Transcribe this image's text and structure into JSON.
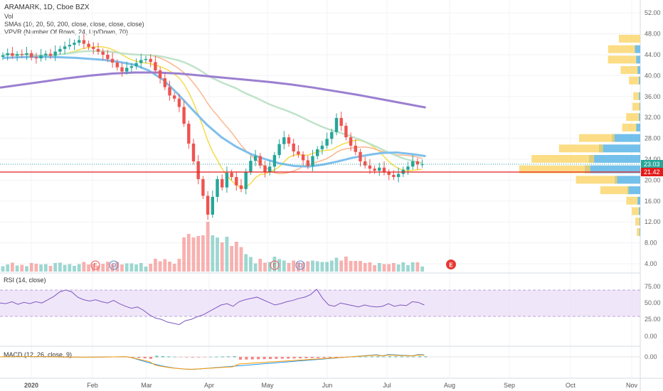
{
  "header": {
    "symbol_line": "ARAMARK, 1D, Cboe BZX",
    "indicators": [
      "Vol",
      "SMAs (10, 20, 50, 200, close, close, close, close)",
      "VPVR (Number Of Rows, 24, Up/Down, 70)"
    ]
  },
  "rsi": {
    "label": "RSI (14, close)",
    "ticks": [
      "75.00",
      "50.00",
      "25.00",
      "0.00"
    ]
  },
  "macd": {
    "label": "MACD (12, 26, close, 9)",
    "ticks": [
      "0.00"
    ]
  },
  "price_axis": {
    "ticks": [
      "52.00",
      "48.00",
      "44.00",
      "40.00",
      "36.00",
      "32.00",
      "28.00",
      "24.00",
      "20.00",
      "16.00",
      "12.00",
      "8.00",
      "4.00"
    ]
  },
  "time_axis": {
    "labels": [
      "2020",
      "Feb",
      "Mar",
      "Apr",
      "May",
      "Jun",
      "Jul",
      "Aug",
      "Sep",
      "Oct",
      "Nov"
    ]
  },
  "badges": {
    "last_price": "23.03",
    "level_price": "21.42",
    "earnings_marker": "E",
    "dividend_marker": "D"
  },
  "colors": {
    "up": "#26a69a",
    "down": "#ef5350",
    "sma10": "#f5dc4b",
    "sma20": "#fbb68f",
    "sma50": "#bfe3c9",
    "sma200": "#9b7fd0",
    "sma_long": "#7fbfec",
    "vpvr_up": "#5ab5e8",
    "vpvr_down": "#fbd15c",
    "level_line": "#e31b1b",
    "rsi_band": "#e9dcf7"
  },
  "chart_data": {
    "type": "candlestick",
    "x_labels": [
      "2020",
      "Feb",
      "Mar",
      "Apr",
      "May",
      "Jun",
      "Jul",
      "Aug",
      "Sep",
      "Oct",
      "Nov"
    ],
    "ylim": [
      2,
      54
    ],
    "candles": [
      {
        "o": 43.6,
        "c": 43.9
      },
      {
        "o": 43.9,
        "c": 44.3
      },
      {
        "o": 44.3,
        "c": 43.8
      },
      {
        "o": 43.8,
        "c": 44.1
      },
      {
        "o": 44.1,
        "c": 44.0
      },
      {
        "o": 44.0,
        "c": 44.3
      },
      {
        "o": 44.3,
        "c": 43.5
      },
      {
        "o": 43.5,
        "c": 43.3
      },
      {
        "o": 43.3,
        "c": 43.9
      },
      {
        "o": 43.9,
        "c": 44.2
      },
      {
        "o": 44.2,
        "c": 43.8
      },
      {
        "o": 43.8,
        "c": 44.6
      },
      {
        "o": 44.6,
        "c": 45.1
      },
      {
        "o": 45.1,
        "c": 45.6
      },
      {
        "o": 45.6,
        "c": 45.9
      },
      {
        "o": 45.9,
        "c": 46.3
      },
      {
        "o": 46.3,
        "c": 46.8
      },
      {
        "o": 46.8,
        "c": 46.1
      },
      {
        "o": 46.1,
        "c": 45.5
      },
      {
        "o": 45.5,
        "c": 45.1
      },
      {
        "o": 45.1,
        "c": 44.6
      },
      {
        "o": 44.6,
        "c": 44.0
      },
      {
        "o": 44.0,
        "c": 43.2
      },
      {
        "o": 43.2,
        "c": 42.5
      },
      {
        "o": 42.5,
        "c": 41.6
      },
      {
        "o": 41.6,
        "c": 40.8
      },
      {
        "o": 40.8,
        "c": 41.5
      },
      {
        "o": 41.5,
        "c": 41.8
      },
      {
        "o": 41.8,
        "c": 42.4
      },
      {
        "o": 42.4,
        "c": 43.0
      },
      {
        "o": 43.0,
        "c": 43.2
      },
      {
        "o": 43.2,
        "c": 42.6
      },
      {
        "o": 42.6,
        "c": 41.0
      },
      {
        "o": 41.0,
        "c": 39.5
      },
      {
        "o": 39.5,
        "c": 37.8
      },
      {
        "o": 37.8,
        "c": 36.2
      },
      {
        "o": 36.2,
        "c": 35.6
      },
      {
        "o": 35.6,
        "c": 34.0
      },
      {
        "o": 34.0,
        "c": 30.8
      },
      {
        "o": 30.8,
        "c": 27.0
      },
      {
        "o": 27.0,
        "c": 23.6
      },
      {
        "o": 23.6,
        "c": 20.2
      },
      {
        "o": 20.2,
        "c": 17.0
      },
      {
        "o": 17.0,
        "c": 13.4
      },
      {
        "o": 13.4,
        "c": 16.8
      },
      {
        "o": 16.8,
        "c": 20.2
      },
      {
        "o": 20.2,
        "c": 18.6
      },
      {
        "o": 18.6,
        "c": 21.4
      },
      {
        "o": 21.4,
        "c": 20.6
      },
      {
        "o": 20.6,
        "c": 19.0
      },
      {
        "o": 19.0,
        "c": 18.3
      },
      {
        "o": 18.3,
        "c": 21.6
      },
      {
        "o": 21.6,
        "c": 23.7
      },
      {
        "o": 23.7,
        "c": 24.6
      },
      {
        "o": 24.6,
        "c": 22.8
      },
      {
        "o": 22.8,
        "c": 21.5
      },
      {
        "o": 21.5,
        "c": 22.6
      },
      {
        "o": 22.6,
        "c": 24.8
      },
      {
        "o": 24.8,
        "c": 26.9
      },
      {
        "o": 26.9,
        "c": 28.2
      },
      {
        "o": 28.2,
        "c": 27.0
      },
      {
        "o": 27.0,
        "c": 25.5
      },
      {
        "o": 25.5,
        "c": 24.9
      },
      {
        "o": 24.9,
        "c": 23.8
      },
      {
        "o": 23.8,
        "c": 22.7
      },
      {
        "o": 22.7,
        "c": 24.6
      },
      {
        "o": 24.6,
        "c": 25.9
      },
      {
        "o": 25.9,
        "c": 26.6
      },
      {
        "o": 26.6,
        "c": 27.9
      },
      {
        "o": 27.9,
        "c": 29.2
      },
      {
        "o": 29.2,
        "c": 31.9
      },
      {
        "o": 31.9,
        "c": 30.4
      },
      {
        "o": 30.4,
        "c": 28.2
      },
      {
        "o": 28.2,
        "c": 26.6
      },
      {
        "o": 26.6,
        "c": 25.4
      },
      {
        "o": 25.4,
        "c": 23.6
      },
      {
        "o": 23.6,
        "c": 22.8
      },
      {
        "o": 22.8,
        "c": 22.2
      },
      {
        "o": 22.2,
        "c": 21.8
      },
      {
        "o": 21.8,
        "c": 22.4
      },
      {
        "o": 22.4,
        "c": 21.5
      },
      {
        "o": 21.5,
        "c": 21.0
      },
      {
        "o": 21.0,
        "c": 20.6
      },
      {
        "o": 20.6,
        "c": 21.2
      },
      {
        "o": 21.2,
        "c": 22.0
      },
      {
        "o": 22.0,
        "c": 22.6
      },
      {
        "o": 22.6,
        "c": 23.6
      },
      {
        "o": 23.6,
        "c": 23.0
      },
      {
        "o": 23.0,
        "c": 23.03
      }
    ]
  }
}
